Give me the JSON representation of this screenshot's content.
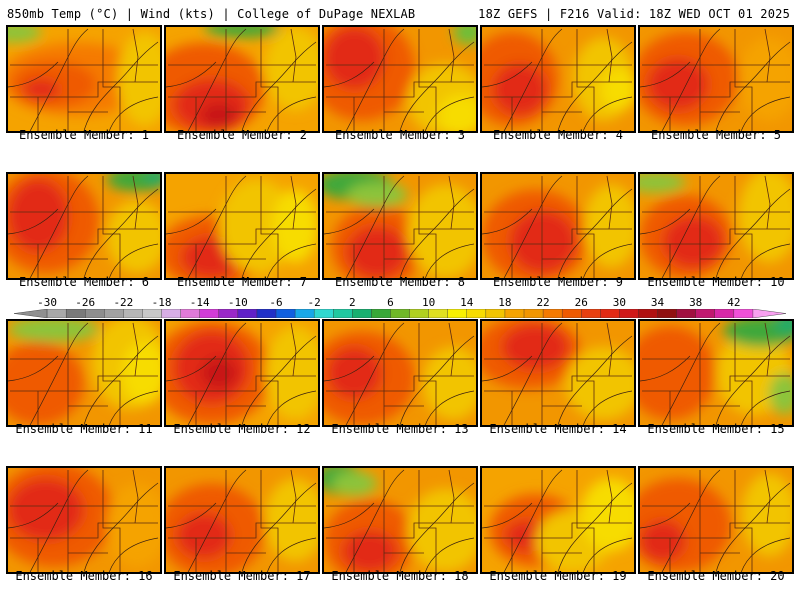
{
  "header": {
    "left_title": "850mb Temp (°C) | Wind (kts) | College of DuPage NEXLAB",
    "right_title": "18Z GEFS | F216 Valid: 18Z WED OCT 01 2025"
  },
  "panels": [
    {
      "label": "Ensemble Member: 1",
      "base": "#f5a300",
      "blobs": [
        [
          "#f57a00",
          0.45,
          0.5,
          0.5,
          0.35
        ],
        [
          "#ef5a00",
          0.3,
          0.55,
          0.28,
          0.22
        ],
        [
          "#e22a14",
          0.22,
          0.6,
          0.12,
          0.1
        ],
        [
          "#f2c400",
          0.9,
          0.5,
          0.18,
          0.45
        ],
        [
          "#8cc43a",
          0.04,
          0.05,
          0.18,
          0.1
        ]
      ]
    },
    {
      "label": "Ensemble Member: 2",
      "base": "#f5a300",
      "blobs": [
        [
          "#ef5a00",
          0.25,
          0.6,
          0.4,
          0.45
        ],
        [
          "#e22a14",
          0.3,
          0.75,
          0.25,
          0.25
        ],
        [
          "#c81818",
          0.35,
          0.85,
          0.12,
          0.12
        ],
        [
          "#f2c400",
          0.85,
          0.4,
          0.2,
          0.4
        ],
        [
          "#3fa83a",
          0.5,
          0.02,
          0.25,
          0.08
        ]
      ]
    },
    {
      "label": "Ensemble Member: 3",
      "base": "#f29600",
      "blobs": [
        [
          "#ef5a00",
          0.25,
          0.4,
          0.35,
          0.5
        ],
        [
          "#e22a14",
          0.2,
          0.3,
          0.2,
          0.3
        ],
        [
          "#f2c400",
          0.8,
          0.7,
          0.25,
          0.35
        ],
        [
          "#f7dc00",
          0.9,
          0.85,
          0.15,
          0.2
        ],
        [
          "#6cbf3a",
          0.95,
          0.05,
          0.1,
          0.12
        ]
      ]
    },
    {
      "label": "Ensemble Member: 4",
      "base": "#f29600",
      "blobs": [
        [
          "#ef5a00",
          0.2,
          0.5,
          0.3,
          0.45
        ],
        [
          "#e22a14",
          0.25,
          0.6,
          0.18,
          0.25
        ],
        [
          "#f2c400",
          0.8,
          0.5,
          0.2,
          0.4
        ],
        [
          "#f7dc00",
          0.9,
          0.6,
          0.12,
          0.2
        ]
      ]
    },
    {
      "label": "Ensemble Member: 5",
      "base": "#f29600",
      "blobs": [
        [
          "#ef5a00",
          0.3,
          0.5,
          0.35,
          0.45
        ],
        [
          "#e22a14",
          0.25,
          0.55,
          0.2,
          0.25
        ],
        [
          "#f5a300",
          0.85,
          0.5,
          0.2,
          0.4
        ]
      ]
    },
    {
      "label": "Ensemble Member: 6",
      "base": "#f29600",
      "blobs": [
        [
          "#ef5a00",
          0.25,
          0.45,
          0.35,
          0.5
        ],
        [
          "#e22a14",
          0.2,
          0.4,
          0.2,
          0.35
        ],
        [
          "#f2c400",
          0.85,
          0.6,
          0.2,
          0.35
        ],
        [
          "#3fa83a",
          0.85,
          0.05,
          0.2,
          0.12
        ],
        [
          "#1aaa6a",
          0.98,
          0.02,
          0.08,
          0.08
        ]
      ]
    },
    {
      "label": "Ensemble Member: 7",
      "base": "#f5a300",
      "blobs": [
        [
          "#ef5a00",
          0.3,
          0.75,
          0.35,
          0.35
        ],
        [
          "#e22a14",
          0.3,
          0.8,
          0.2,
          0.2
        ],
        [
          "#f2c400",
          0.6,
          0.5,
          0.25,
          0.45
        ],
        [
          "#f7dc00",
          0.85,
          0.5,
          0.15,
          0.35
        ]
      ]
    },
    {
      "label": "Ensemble Member: 8",
      "base": "#f29600",
      "blobs": [
        [
          "#ef5a00",
          0.35,
          0.7,
          0.3,
          0.4
        ],
        [
          "#e22a14",
          0.35,
          0.75,
          0.2,
          0.25
        ],
        [
          "#f2c400",
          0.8,
          0.55,
          0.25,
          0.45
        ],
        [
          "#3fa83a",
          0.2,
          0.1,
          0.25,
          0.15
        ],
        [
          "#8cc43a",
          0.35,
          0.2,
          0.2,
          0.12
        ]
      ]
    },
    {
      "label": "Ensemble Member: 9",
      "base": "#f29600",
      "blobs": [
        [
          "#ef5a00",
          0.35,
          0.6,
          0.35,
          0.45
        ],
        [
          "#e22a14",
          0.4,
          0.65,
          0.22,
          0.3
        ],
        [
          "#f2c400",
          0.85,
          0.5,
          0.18,
          0.4
        ]
      ]
    },
    {
      "label": "Ensemble Member: 10",
      "base": "#f29600",
      "blobs": [
        [
          "#ef5a00",
          0.3,
          0.6,
          0.3,
          0.4
        ],
        [
          "#e22a14",
          0.35,
          0.65,
          0.2,
          0.25
        ],
        [
          "#f2c400",
          0.85,
          0.4,
          0.2,
          0.45
        ],
        [
          "#8cc43a",
          0.1,
          0.08,
          0.2,
          0.1
        ]
      ]
    },
    {
      "label": "Ensemble Member: 11",
      "base": "#f29600",
      "blobs": [
        [
          "#ef5a00",
          0.2,
          0.6,
          0.3,
          0.4
        ],
        [
          "#f2c400",
          0.8,
          0.4,
          0.25,
          0.45
        ],
        [
          "#f7dc00",
          0.9,
          0.5,
          0.15,
          0.3
        ],
        [
          "#8cc43a",
          0.3,
          0.08,
          0.3,
          0.12
        ]
      ]
    },
    {
      "label": "Ensemble Member: 12",
      "base": "#f5a300",
      "blobs": [
        [
          "#ef5a00",
          0.3,
          0.5,
          0.4,
          0.5
        ],
        [
          "#e22a14",
          0.3,
          0.45,
          0.25,
          0.35
        ],
        [
          "#c81818",
          0.35,
          0.5,
          0.12,
          0.15
        ],
        [
          "#f2c400",
          0.85,
          0.5,
          0.2,
          0.45
        ]
      ]
    },
    {
      "label": "Ensemble Member: 13",
      "base": "#f29600",
      "blobs": [
        [
          "#ef5a00",
          0.25,
          0.55,
          0.35,
          0.45
        ],
        [
          "#e22a14",
          0.2,
          0.5,
          0.18,
          0.25
        ],
        [
          "#f2c400",
          0.85,
          0.6,
          0.2,
          0.35
        ]
      ]
    },
    {
      "label": "Ensemble Member: 14",
      "base": "#f29600",
      "blobs": [
        [
          "#ef5a00",
          0.3,
          0.3,
          0.35,
          0.35
        ],
        [
          "#e22a14",
          0.35,
          0.25,
          0.22,
          0.22
        ],
        [
          "#f2c400",
          0.8,
          0.6,
          0.25,
          0.35
        ]
      ]
    },
    {
      "label": "Ensemble Member: 15",
      "base": "#f29600",
      "blobs": [
        [
          "#ef5a00",
          0.2,
          0.5,
          0.3,
          0.45
        ],
        [
          "#f2c400",
          0.75,
          0.5,
          0.25,
          0.4
        ],
        [
          "#3fa83a",
          0.8,
          0.1,
          0.25,
          0.15
        ],
        [
          "#1aaa6a",
          0.98,
          0.02,
          0.1,
          0.1
        ],
        [
          "#8cc43a",
          0.95,
          0.7,
          0.1,
          0.2
        ]
      ]
    },
    {
      "label": "Ensemble Member: 16",
      "base": "#f29600",
      "blobs": [
        [
          "#ef5a00",
          0.3,
          0.45,
          0.4,
          0.5
        ],
        [
          "#e22a14",
          0.25,
          0.4,
          0.25,
          0.3
        ],
        [
          "#f5a300",
          0.85,
          0.55,
          0.2,
          0.4
        ]
      ]
    },
    {
      "label": "Ensemble Member: 17",
      "base": "#f29600",
      "blobs": [
        [
          "#ef5a00",
          0.3,
          0.6,
          0.35,
          0.45
        ],
        [
          "#e22a14",
          0.25,
          0.65,
          0.18,
          0.22
        ],
        [
          "#f2c400",
          0.85,
          0.5,
          0.2,
          0.4
        ]
      ]
    },
    {
      "label": "Ensemble Member: 18",
      "base": "#f29600",
      "blobs": [
        [
          "#ef5a00",
          0.3,
          0.7,
          0.3,
          0.4
        ],
        [
          "#e22a14",
          0.3,
          0.8,
          0.18,
          0.2
        ],
        [
          "#f2c400",
          0.8,
          0.6,
          0.25,
          0.4
        ],
        [
          "#3fa83a",
          0.1,
          0.1,
          0.15,
          0.15
        ],
        [
          "#8cc43a",
          0.2,
          0.15,
          0.15,
          0.12
        ]
      ]
    },
    {
      "label": "Ensemble Member: 19",
      "base": "#f5a300",
      "blobs": [
        [
          "#ef5a00",
          0.35,
          0.6,
          0.3,
          0.35
        ],
        [
          "#e22a14",
          0.3,
          0.65,
          0.15,
          0.15
        ],
        [
          "#f2c400",
          0.6,
          0.7,
          0.25,
          0.3
        ],
        [
          "#f7dc00",
          0.85,
          0.45,
          0.2,
          0.35
        ]
      ]
    },
    {
      "label": "Ensemble Member: 20",
      "base": "#f29600",
      "blobs": [
        [
          "#ef5a00",
          0.25,
          0.55,
          0.35,
          0.45
        ],
        [
          "#e22a14",
          0.15,
          0.7,
          0.15,
          0.2
        ],
        [
          "#f2c400",
          0.85,
          0.45,
          0.18,
          0.4
        ]
      ]
    }
  ],
  "colorbar": {
    "ticks": [
      "-30",
      "-26",
      "-22",
      "-18",
      "-14",
      "-10",
      "-6",
      "-2",
      "2",
      "6",
      "10",
      "14",
      "18",
      "22",
      "26",
      "30",
      "34",
      "38",
      "42"
    ],
    "colors": [
      "#909090",
      "#a8a8a8",
      "#7a7a7a",
      "#8e8e8e",
      "#a2a2a2",
      "#b6b6b6",
      "#c8c8c8",
      "#d8aee6",
      "#e07ad8",
      "#d23cd8",
      "#9a28c8",
      "#6020c8",
      "#2030c8",
      "#1060e0",
      "#18a8e8",
      "#30d8d0",
      "#20c8a0",
      "#18b070",
      "#38a838",
      "#70b828",
      "#b0d020",
      "#e0e020",
      "#f8f000",
      "#f7dc00",
      "#f2c400",
      "#f5a300",
      "#f29600",
      "#f57a00",
      "#ef5a00",
      "#e84010",
      "#e22a14",
      "#d01818",
      "#b01010",
      "#901010",
      "#a01040",
      "#c01870",
      "#d828a8",
      "#f050d8",
      "#f8a0f0"
    ]
  }
}
